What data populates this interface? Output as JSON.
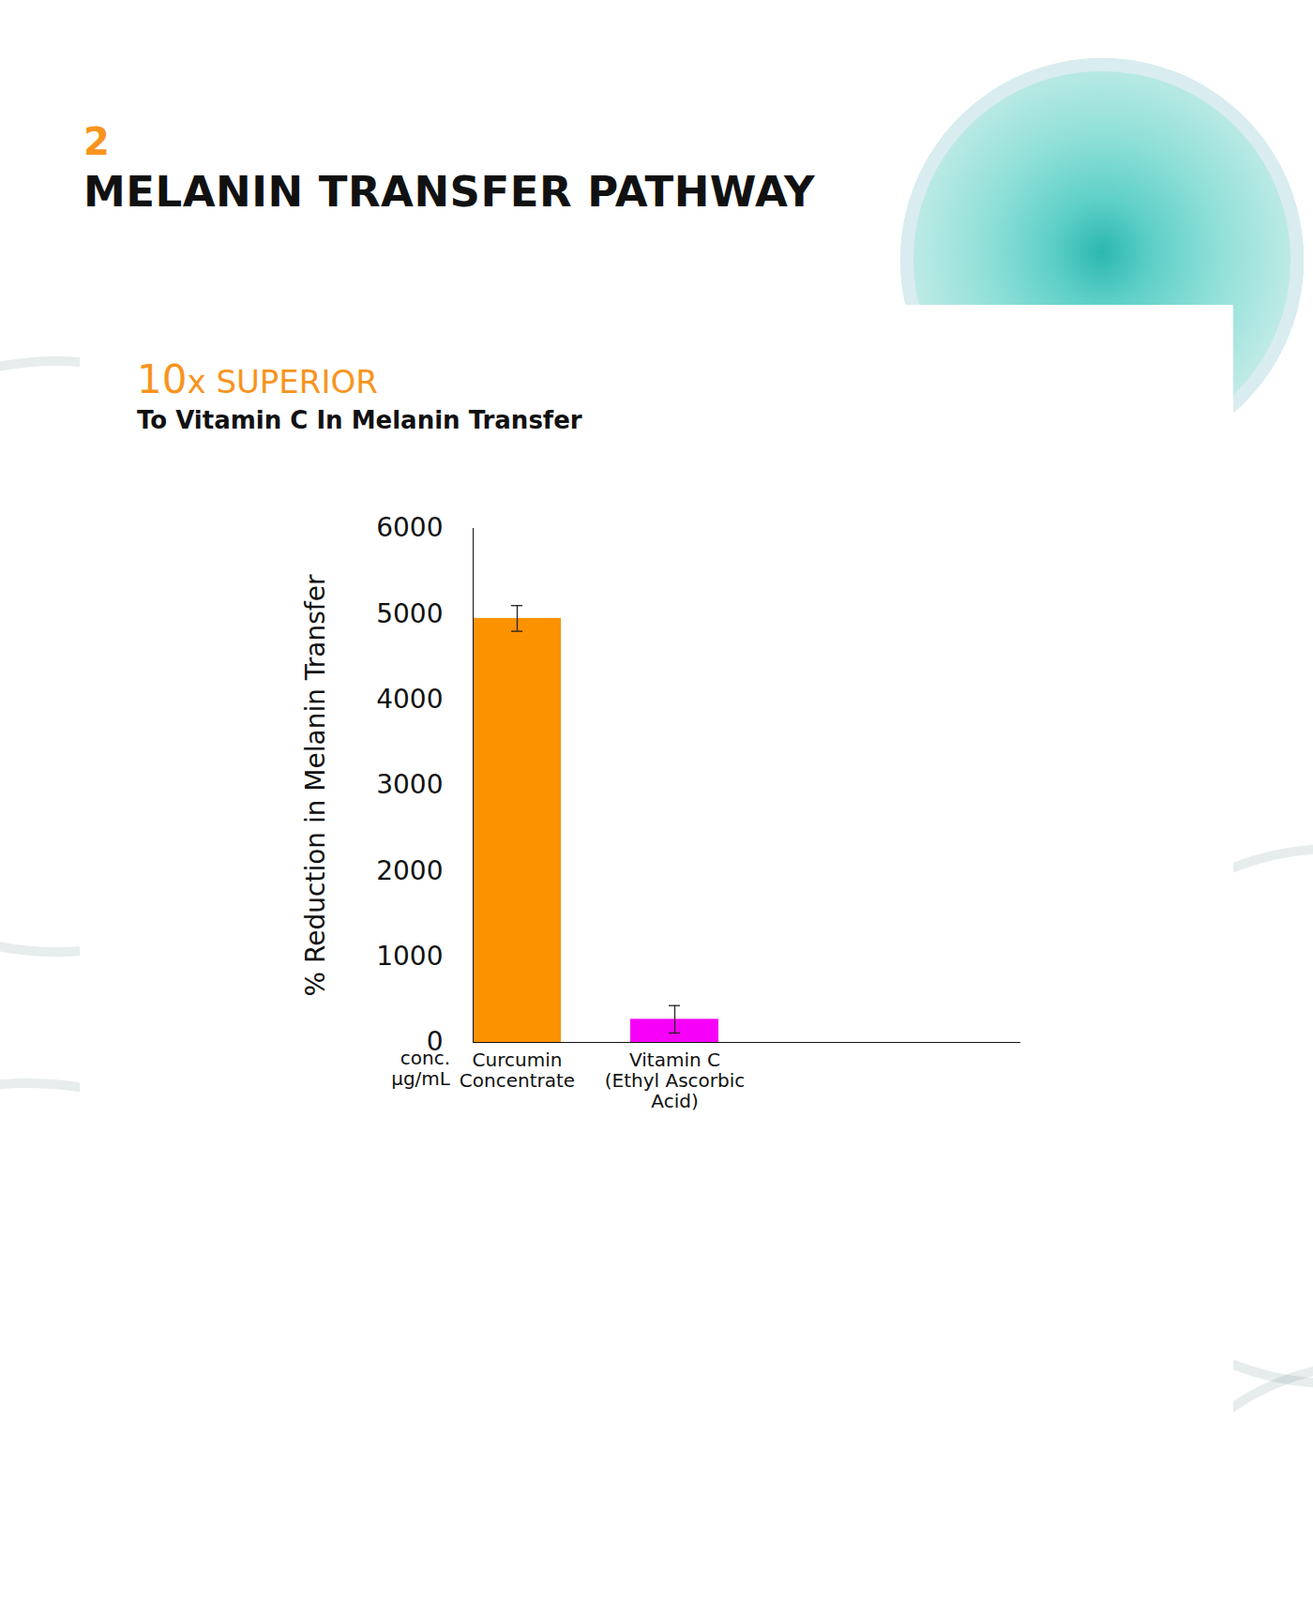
{
  "header": {
    "number": "2",
    "title": "MELANIN TRANSFER PATHWAY"
  },
  "chart_data": {
    "type": "bar",
    "title": "10x SUPERIOR",
    "subtitle": "To Vitamin C In Melanin Transfer",
    "ylabel": "% Reduction in Melanin Transfer",
    "xlabel": "conc. µg/mL",
    "categories": [
      "Curcumin Concentrate",
      "Vitamin C (Ethyl Ascorbic Acid)"
    ],
    "values": [
      4950,
      270
    ],
    "errors": [
      150,
      160
    ],
    "colors": [
      "#fd9200",
      "#f700f7"
    ],
    "ylim": [
      0,
      6000
    ],
    "yticks": [
      0,
      1000,
      2000,
      3000,
      4000,
      5000,
      6000
    ],
    "grid": false
  }
}
